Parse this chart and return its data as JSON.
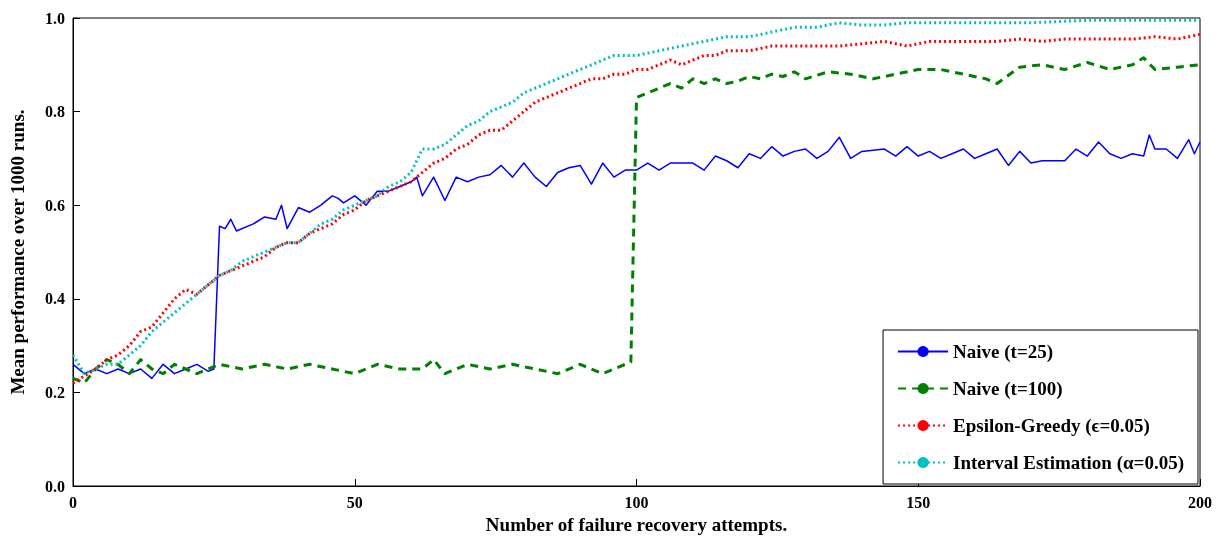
{
  "chart_data": {
    "type": "line",
    "xlabel": "Number of failure recovery attempts.",
    "ylabel": "Mean performance over 1000 runs.",
    "xlim": [
      0,
      200
    ],
    "xticks": [
      0,
      50,
      100,
      150,
      200
    ],
    "ylim": [
      0,
      1
    ],
    "yticks": [
      {
        "value": 0,
        "label": "0.0"
      },
      {
        "value": 0.2,
        "label": "0.2"
      },
      {
        "value": 0.4,
        "label": "0.4"
      },
      {
        "value": 0.6,
        "label": "0.6"
      },
      {
        "value": 0.8,
        "label": "0.8"
      },
      {
        "value": 1,
        "label": "1.0"
      }
    ],
    "grid": false,
    "legend": "bottom right",
    "marker": "none",
    "series": [
      {
        "name": "Naive (t=25)",
        "color": "#0000ff",
        "line_style": "solid",
        "x": [
          0,
          2,
          4,
          6,
          8,
          10,
          12,
          14,
          16,
          18,
          20,
          22,
          24,
          25,
          26,
          27,
          28,
          29,
          32,
          34,
          36,
          37,
          38,
          40,
          42,
          44,
          46,
          47,
          48,
          50,
          52,
          54,
          56,
          58,
          60,
          61,
          62,
          64,
          66,
          68,
          70,
          72,
          74,
          76,
          78,
          80,
          82,
          84,
          86,
          88,
          90,
          92,
          94,
          96,
          98,
          100,
          102,
          104,
          106,
          110,
          112,
          114,
          116,
          118,
          120,
          122,
          124,
          126,
          128,
          130,
          132,
          134,
          136,
          138,
          140,
          144,
          146,
          148,
          150,
          152,
          154,
          156,
          158,
          160,
          162,
          164,
          166,
          168,
          170,
          172,
          176,
          178,
          180,
          182,
          184,
          186,
          188,
          190,
          191,
          192,
          194,
          196,
          198,
          199,
          200
        ],
        "values": [
          0.26,
          0.24,
          0.25,
          0.24,
          0.25,
          0.24,
          0.25,
          0.23,
          0.26,
          0.24,
          0.25,
          0.26,
          0.245,
          0.25,
          0.555,
          0.55,
          0.57,
          0.545,
          0.56,
          0.575,
          0.57,
          0.6,
          0.55,
          0.595,
          0.585,
          0.6,
          0.62,
          0.615,
          0.605,
          0.62,
          0.6,
          0.63,
          0.63,
          0.64,
          0.65,
          0.66,
          0.62,
          0.66,
          0.61,
          0.66,
          0.65,
          0.66,
          0.665,
          0.685,
          0.66,
          0.69,
          0.66,
          0.64,
          0.67,
          0.68,
          0.685,
          0.645,
          0.69,
          0.66,
          0.675,
          0.675,
          0.69,
          0.675,
          0.69,
          0.69,
          0.675,
          0.705,
          0.695,
          0.68,
          0.71,
          0.7,
          0.725,
          0.705,
          0.715,
          0.72,
          0.7,
          0.715,
          0.745,
          0.7,
          0.715,
          0.72,
          0.705,
          0.725,
          0.705,
          0.715,
          0.7,
          0.71,
          0.72,
          0.7,
          0.71,
          0.72,
          0.685,
          0.715,
          0.69,
          0.695,
          0.695,
          0.72,
          0.705,
          0.735,
          0.71,
          0.7,
          0.71,
          0.705,
          0.75,
          0.72,
          0.72,
          0.7,
          0.74,
          0.71,
          0.735
        ]
      },
      {
        "name": "Naive (t=100)",
        "color": "#008000",
        "line_style": "dashed",
        "x": [
          0,
          2,
          4,
          6,
          8,
          10,
          12,
          14,
          16,
          18,
          20,
          22,
          24,
          26,
          30,
          34,
          38,
          42,
          46,
          50,
          54,
          58,
          62,
          64,
          66,
          70,
          74,
          78,
          82,
          86,
          90,
          94,
          98,
          99,
          100,
          102,
          104,
          106,
          108,
          110,
          112,
          114,
          116,
          118,
          120,
          122,
          124,
          126,
          128,
          130,
          134,
          138,
          142,
          146,
          150,
          154,
          158,
          162,
          164,
          168,
          172,
          176,
          180,
          184,
          188,
          190,
          192,
          196,
          200
        ],
        "values": [
          0.23,
          0.22,
          0.25,
          0.27,
          0.26,
          0.24,
          0.27,
          0.25,
          0.24,
          0.26,
          0.25,
          0.24,
          0.25,
          0.26,
          0.25,
          0.26,
          0.25,
          0.26,
          0.25,
          0.24,
          0.26,
          0.25,
          0.25,
          0.27,
          0.24,
          0.26,
          0.25,
          0.26,
          0.25,
          0.24,
          0.26,
          0.24,
          0.26,
          0.265,
          0.83,
          0.84,
          0.85,
          0.86,
          0.85,
          0.87,
          0.86,
          0.87,
          0.86,
          0.865,
          0.875,
          0.87,
          0.88,
          0.875,
          0.885,
          0.87,
          0.885,
          0.88,
          0.87,
          0.88,
          0.89,
          0.89,
          0.88,
          0.87,
          0.86,
          0.895,
          0.9,
          0.89,
          0.905,
          0.89,
          0.9,
          0.915,
          0.89,
          0.895,
          0.9
        ]
      },
      {
        "name": "Epsilon-Greedy (ϵ=0.05)",
        "color": "#ff0000",
        "line_style": "dotted",
        "x": [
          0,
          4,
          6,
          8,
          10,
          12,
          14,
          16,
          18,
          20,
          22,
          24,
          26,
          28,
          30,
          32,
          34,
          36,
          38,
          40,
          42,
          44,
          46,
          48,
          50,
          52,
          54,
          56,
          58,
          60,
          62,
          64,
          66,
          68,
          70,
          72,
          74,
          76,
          78,
          80,
          82,
          84,
          86,
          88,
          90,
          92,
          94,
          96,
          98,
          100,
          102,
          104,
          106,
          108,
          110,
          112,
          114,
          116,
          120,
          124,
          128,
          132,
          136,
          140,
          144,
          148,
          152,
          156,
          160,
          164,
          168,
          172,
          176,
          180,
          184,
          188,
          192,
          196,
          200
        ],
        "values": [
          0.22,
          0.25,
          0.27,
          0.28,
          0.3,
          0.33,
          0.34,
          0.37,
          0.4,
          0.42,
          0.41,
          0.43,
          0.45,
          0.46,
          0.47,
          0.48,
          0.49,
          0.51,
          0.52,
          0.52,
          0.54,
          0.55,
          0.56,
          0.58,
          0.59,
          0.61,
          0.62,
          0.63,
          0.64,
          0.65,
          0.67,
          0.69,
          0.7,
          0.72,
          0.73,
          0.75,
          0.76,
          0.76,
          0.78,
          0.8,
          0.82,
          0.83,
          0.84,
          0.85,
          0.86,
          0.87,
          0.87,
          0.88,
          0.88,
          0.89,
          0.89,
          0.9,
          0.91,
          0.9,
          0.91,
          0.92,
          0.92,
          0.93,
          0.93,
          0.94,
          0.94,
          0.94,
          0.94,
          0.945,
          0.95,
          0.94,
          0.95,
          0.95,
          0.95,
          0.95,
          0.955,
          0.95,
          0.955,
          0.955,
          0.955,
          0.955,
          0.96,
          0.955,
          0.965
        ]
      },
      {
        "name": "Interval Estimation (α=0.05)",
        "color": "#00bfbf",
        "line_style": "dotted",
        "x": [
          0,
          2,
          4,
          6,
          8,
          10,
          12,
          14,
          16,
          18,
          20,
          22,
          24,
          26,
          28,
          30,
          32,
          34,
          36,
          38,
          40,
          42,
          44,
          46,
          48,
          50,
          52,
          54,
          56,
          58,
          60,
          62,
          64,
          66,
          68,
          70,
          72,
          74,
          76,
          78,
          80,
          82,
          84,
          86,
          88,
          90,
          92,
          94,
          96,
          98,
          100,
          104,
          108,
          112,
          116,
          120,
          124,
          128,
          132,
          136,
          140,
          144,
          148,
          152,
          160,
          170,
          180,
          190,
          200
        ],
        "values": [
          0.28,
          0.24,
          0.25,
          0.26,
          0.26,
          0.28,
          0.3,
          0.33,
          0.35,
          0.37,
          0.39,
          0.41,
          0.43,
          0.45,
          0.46,
          0.48,
          0.49,
          0.5,
          0.51,
          0.52,
          0.52,
          0.54,
          0.56,
          0.57,
          0.59,
          0.6,
          0.61,
          0.62,
          0.64,
          0.65,
          0.67,
          0.72,
          0.72,
          0.73,
          0.75,
          0.77,
          0.78,
          0.8,
          0.81,
          0.82,
          0.84,
          0.85,
          0.86,
          0.87,
          0.88,
          0.89,
          0.9,
          0.91,
          0.92,
          0.92,
          0.92,
          0.93,
          0.94,
          0.95,
          0.96,
          0.96,
          0.97,
          0.98,
          0.98,
          0.99,
          0.985,
          0.985,
          0.99,
          0.99,
          0.99,
          0.99,
          0.995,
          0.995,
          0.995
        ]
      }
    ]
  }
}
